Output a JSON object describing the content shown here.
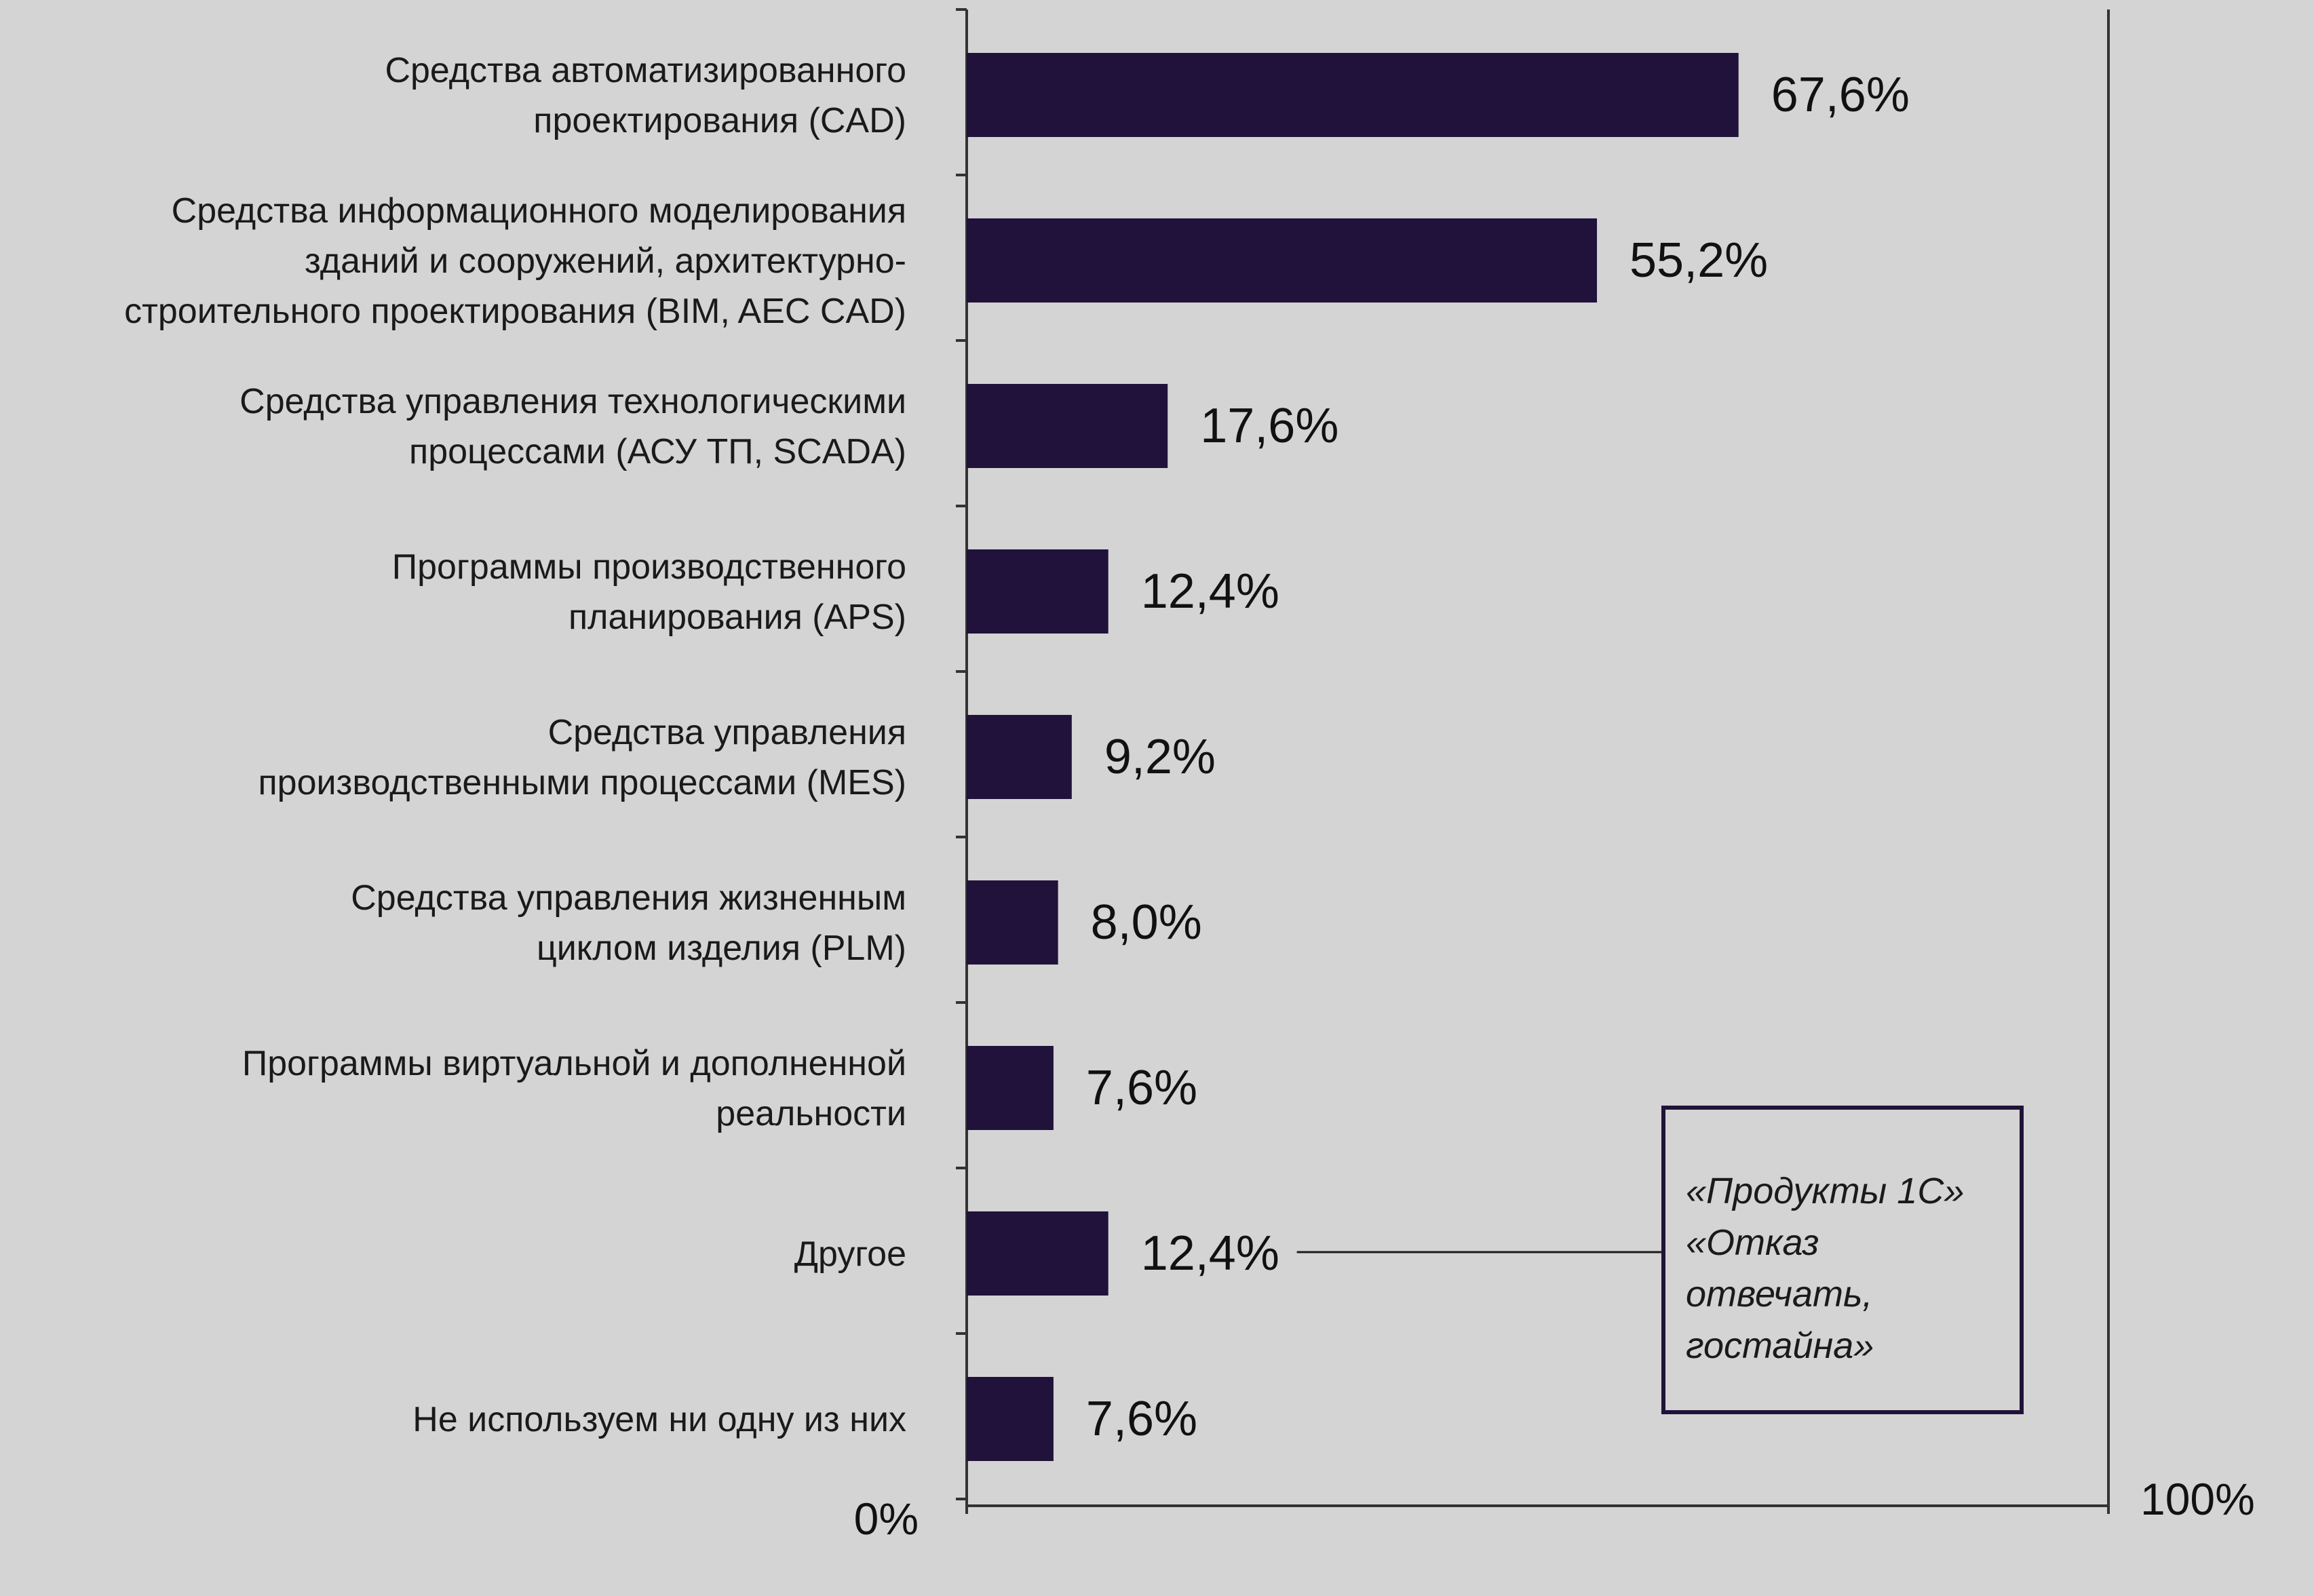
{
  "chart_data": {
    "type": "bar",
    "orientation": "horizontal",
    "categories": [
      [
        "Средства автоматизированного",
        "проектирования (CAD)"
      ],
      [
        "Средства информационного моделирования",
        "зданий и  сооружений, архитектурно-",
        "строительного проектирования (BIM,  AEC CAD)"
      ],
      [
        "Средства управления технологическими",
        "процессами (АСУ ТП, SCADA)"
      ],
      [
        "Программы производственного",
        "планирования (APS)"
      ],
      [
        "Средства управления",
        "производственными процессами (MES)"
      ],
      [
        "Средства управления жизненным",
        "циклом изделия (PLM)"
      ],
      [
        "Программы виртуальной и дополненной",
        "реальности"
      ],
      [
        "Другое"
      ],
      [
        "Не используем ни одну из них"
      ]
    ],
    "values": [
      67.6,
      55.2,
      17.6,
      12.4,
      9.2,
      8.0,
      7.6,
      12.4,
      7.6
    ],
    "value_labels": [
      "67,6%",
      "55,2%",
      "17,6%",
      "12,4%",
      "9,2%",
      "8,0%",
      "7,6%",
      "12,4%",
      "7,6%"
    ],
    "xlim": [
      0,
      100
    ],
    "axis_min_label": "0%",
    "axis_max_label": "100%",
    "grid": false,
    "colors": {
      "bar": "#20123a",
      "axis": "#333333",
      "background": "#d4d4d4"
    }
  },
  "note": {
    "lines": [
      "«Продукты 1С»",
      "«Отказ",
      "отвечать,",
      "гостайна»"
    ],
    "applies_to_category_index": 7
  }
}
